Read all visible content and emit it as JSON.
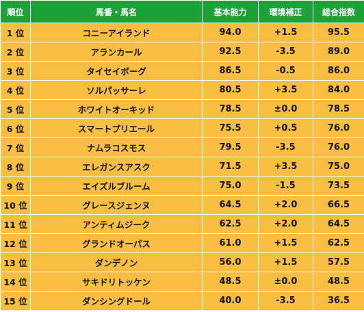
{
  "table": {
    "headers": [
      "順位",
      "馬番・馬名",
      "基本能力",
      "環境補正",
      "総合指数"
    ],
    "rows": [
      [
        "1 位",
        "コニーアイランド",
        "94.0",
        "+1.5",
        "95.5"
      ],
      [
        "2 位",
        "アランカール",
        "92.5",
        "-3.5",
        "89.0"
      ],
      [
        "3 位",
        "タイセイボーグ",
        "86.5",
        "-0.5",
        "86.0"
      ],
      [
        "4 位",
        "ソルパッサーレ",
        "80.5",
        "+3.5",
        "84.0"
      ],
      [
        "5 位",
        "ホワイトオーキッド",
        "78.5",
        "±0.0",
        "78.5"
      ],
      [
        "6 位",
        "スマートプリエール",
        "75.5",
        "+0.5",
        "76.0"
      ],
      [
        "7 位",
        "ナムラコスモス",
        "79.5",
        "-3.5",
        "76.0"
      ],
      [
        "8 位",
        "エレガンスアスク",
        "71.5",
        "+3.5",
        "75.0"
      ],
      [
        "9 位",
        "エイズルブルーム",
        "75.0",
        "-1.5",
        "73.5"
      ],
      [
        "10 位",
        "グレースジェンヌ",
        "64.5",
        "+2.0",
        "66.5"
      ],
      [
        "11 位",
        "アンティムジーク",
        "62.5",
        "+2.0",
        "64.5"
      ],
      [
        "12 位",
        "グランドオーパス",
        "61.0",
        "+1.5",
        "62.5"
      ],
      [
        "13 位",
        "ダンデノン",
        "56.0",
        "+1.5",
        "57.5"
      ],
      [
        "14 位",
        "サキドリトッケン",
        "48.5",
        "±0.0",
        "48.5"
      ],
      [
        "15 位",
        "ダンシングドール",
        "40.0",
        "-3.5",
        "36.5"
      ]
    ]
  },
  "colors": {
    "header_bg": "#1fa13a",
    "header_text": "#ffffff",
    "row_bg": "#f7be42",
    "row_text": "#111111"
  }
}
